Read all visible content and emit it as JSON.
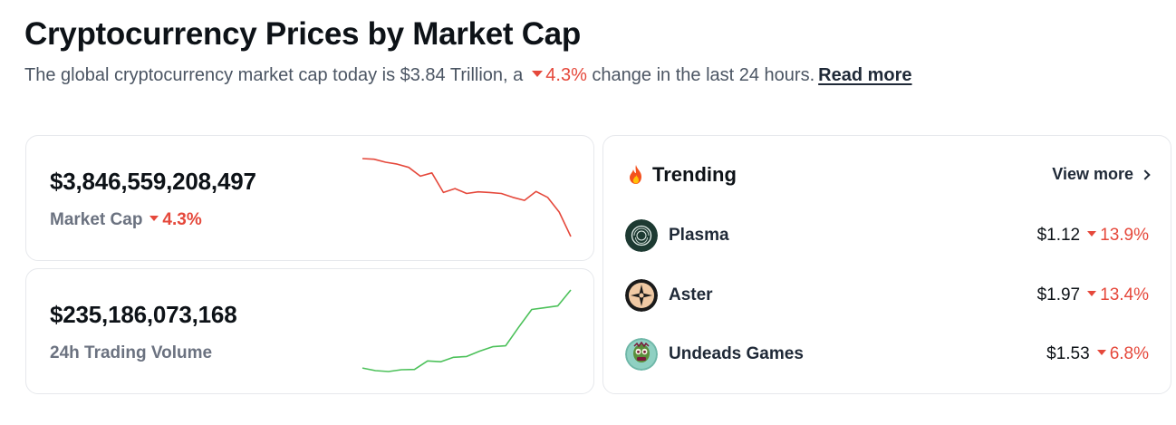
{
  "header": {
    "title": "Cryptocurrency Prices by Market Cap",
    "subtitle_prefix": "The global cryptocurrency market cap today is $3.84 Trillion, a",
    "subtitle_change": "4.3%",
    "subtitle_suffix": "change in the last 24 hours.",
    "read_more": "Read more"
  },
  "market_cap": {
    "value": "$3,846,559,208,497",
    "label": "Market Cap",
    "change": "4.3%",
    "sparkline_color": "#e5483b",
    "sparkline": [
      100,
      99.8,
      98.9,
      98.3,
      97.3,
      94.6,
      95.6,
      89.6,
      90.8,
      89.3,
      89.8,
      89.6,
      89.3,
      88.1,
      87.2,
      89.9,
      88.1,
      83.6,
      76.1
    ]
  },
  "trading_volume": {
    "value": "$235,186,073,168",
    "label": "24h Trading Volume",
    "sparkline_color": "#4cc15a",
    "sparkline": [
      10,
      8.5,
      8,
      9,
      9.2,
      14,
      13.5,
      16,
      16.5,
      19.5,
      22,
      22.5,
      33,
      43,
      44,
      45,
      54
    ]
  },
  "trending": {
    "title": "Trending",
    "title_icon": "fire-icon",
    "view_more": "View more",
    "coins": [
      {
        "name": "Plasma",
        "price": "$1.12",
        "change": "13.9%",
        "icon": "plasma-icon"
      },
      {
        "name": "Aster",
        "price": "$1.97",
        "change": "13.4%",
        "icon": "aster-icon"
      },
      {
        "name": "Undeads Games",
        "price": "$1.53",
        "change": "6.8%",
        "icon": "undeads-icon"
      }
    ]
  },
  "colors": {
    "negative": "#e5483b",
    "positive": "#4cc15a",
    "muted_text": "#6b7280",
    "border": "#e6e8ec"
  }
}
